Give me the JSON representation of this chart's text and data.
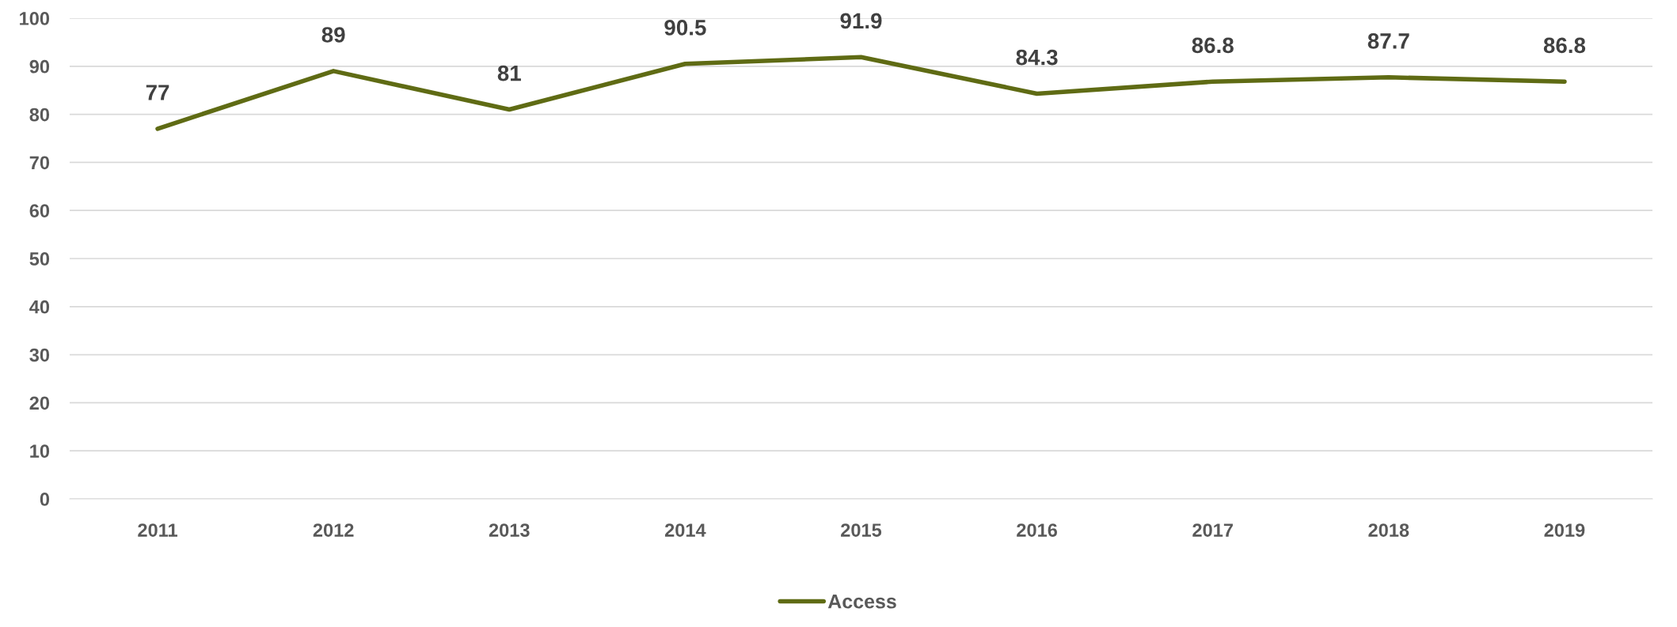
{
  "chart_data": {
    "type": "line",
    "categories": [
      "2011",
      "2012",
      "2013",
      "2014",
      "2015",
      "2016",
      "2017",
      "2018",
      "2019"
    ],
    "series": [
      {
        "name": "Access",
        "color": "#5f6b14",
        "values": [
          77,
          89,
          81,
          90.5,
          91.9,
          84.3,
          86.8,
          87.7,
          86.8
        ]
      }
    ],
    "ylim": [
      0,
      100
    ],
    "yticks": [
      0,
      10,
      20,
      30,
      40,
      50,
      60,
      70,
      80,
      90,
      100
    ],
    "grid": "y",
    "legend": "bottom",
    "data_labels": true,
    "marker": "none",
    "line_style": "solid"
  }
}
